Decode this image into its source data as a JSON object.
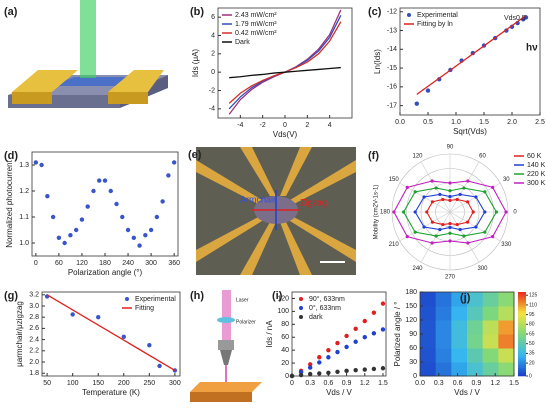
{
  "images": [
    {
      "label": "(a)"
    },
    {
      "label": "(e)",
      "texts": [
        "Armchair",
        "Zigzag"
      ]
    },
    {
      "label": "(h)",
      "texts": [
        "Laser",
        "Polarizer"
      ]
    }
  ],
  "chart_data": [
    {
      "type": "line",
      "label": "(b)",
      "xlabel": "Vds(V)",
      "ylabel": "Ids (μA)",
      "legend": "upper left",
      "xlim": [
        -6,
        6
      ],
      "ylim": [
        -5,
        7
      ],
      "xticks": [
        -4,
        -2,
        0,
        2,
        4
      ],
      "yticks": [
        -4,
        -2,
        0,
        2,
        4,
        6
      ],
      "x": [
        -5,
        -4,
        -3,
        -2,
        -1,
        0,
        1,
        2,
        3,
        4,
        5
      ],
      "series": [
        {
          "name": "2.43 mW/cm²",
          "color": "#a0307a",
          "style": "line",
          "values": [
            -4.6,
            -3.0,
            -1.9,
            -1.1,
            -0.5,
            0,
            0.6,
            1.4,
            2.5,
            4.1,
            6.8
          ]
        },
        {
          "name": "1.79 mW/cm²",
          "color": "#2f4fb8",
          "style": "line",
          "values": [
            -4.0,
            -2.7,
            -1.7,
            -1.0,
            -0.45,
            0,
            0.55,
            1.3,
            2.3,
            3.8,
            6.2
          ]
        },
        {
          "name": "0.42 mW/cm²",
          "color": "#d8302a",
          "style": "line",
          "values": [
            -3.4,
            -2.3,
            -1.5,
            -0.9,
            -0.4,
            0,
            0.5,
            1.1,
            2.0,
            3.4,
            5.5
          ]
        },
        {
          "name": "Dark",
          "color": "#111111",
          "style": "line",
          "values": [
            -0.6,
            -0.5,
            -0.35,
            -0.25,
            -0.1,
            0,
            0.1,
            0.2,
            0.3,
            0.4,
            0.5
          ]
        }
      ]
    },
    {
      "type": "line",
      "label": "(c)",
      "xlabel": "Sqrt(Vds)",
      "ylabel": "Ln(Ids)",
      "legend": "upper left",
      "annotations": [
        "Vds0.5",
        "hν"
      ],
      "xlim": [
        0,
        2.5
      ],
      "ylim": [
        -17.5,
        -11.8
      ],
      "xticks": [
        {
          "value": 0,
          "label": "0.0"
        },
        0.5,
        {
          "value": 1,
          "label": "1.0"
        },
        1.5,
        {
          "value": 2,
          "label": "2.0"
        },
        2.5
      ],
      "yticks": [
        -17,
        -16,
        -15,
        -14,
        -13,
        -12
      ],
      "series": [
        {
          "name": "Experimental",
          "color": "#3050c0",
          "style": "markers",
          "x": [
            0.3,
            0.5,
            0.7,
            0.9,
            1.1,
            1.3,
            1.5,
            1.7,
            1.9,
            2.0,
            2.1,
            2.2,
            2.25
          ],
          "values": [
            -16.9,
            -16.2,
            -15.6,
            -15.1,
            -14.6,
            -14.2,
            -13.8,
            -13.4,
            -13.0,
            -12.8,
            -12.6,
            -12.4,
            -12.3
          ]
        },
        {
          "name": "Fitting by ln",
          "color": "#e02020",
          "style": "line",
          "x": [
            0.3,
            2.25
          ],
          "values": [
            -16.4,
            -12.2
          ]
        }
      ]
    },
    {
      "type": "line",
      "label": "(d)",
      "xlabel": "Polarization angle (°)",
      "ylabel": "Normalized photocurrent",
      "xlim": [
        -10,
        370
      ],
      "ylim": [
        0.95,
        1.35
      ],
      "xticks": [
        0,
        60,
        120,
        180,
        240,
        300,
        360
      ],
      "yticks": [
        {
          "value": 1,
          "label": "1.0"
        },
        1.1,
        1.2,
        1.3
      ],
      "x": [
        0,
        15,
        30,
        45,
        60,
        75,
        90,
        105,
        120,
        135,
        150,
        165,
        180,
        195,
        210,
        225,
        240,
        255,
        270,
        285,
        300,
        315,
        330,
        345,
        360
      ],
      "series": [
        {
          "color": "#3a55c8",
          "style": "markers",
          "values": [
            1.31,
            1.3,
            1.18,
            1.1,
            1.02,
            1.0,
            1.03,
            1.05,
            1.09,
            1.14,
            1.2,
            1.24,
            1.24,
            1.2,
            1.15,
            1.1,
            1.05,
            1.02,
            0.99,
            1.03,
            1.05,
            1.1,
            1.16,
            1.26,
            1.31
          ]
        }
      ]
    },
    {
      "type": "polar",
      "label": "(f)",
      "ylabel": "Mobility (cm2V-1s-1)",
      "legend": "upper right",
      "rlim": [
        0,
        300
      ],
      "thetaticks": [
        0,
        30,
        60,
        90,
        120,
        150,
        180,
        210,
        240,
        270,
        300,
        330
      ],
      "theta": [
        0,
        30,
        60,
        90,
        120,
        150,
        180,
        210,
        240,
        270,
        300,
        330
      ],
      "series": [
        {
          "name": "60 K",
          "color": "#e02020",
          "values": [
            120,
            105,
            75,
            60,
            75,
            105,
            120,
            105,
            75,
            60,
            75,
            105
          ]
        },
        {
          "name": "140 K",
          "color": "#2040d0",
          "values": [
            180,
            155,
            105,
            80,
            105,
            155,
            180,
            155,
            105,
            80,
            105,
            155
          ]
        },
        {
          "name": "220 K",
          "color": "#20a030",
          "values": [
            240,
            208,
            143,
            110,
            143,
            208,
            240,
            208,
            143,
            110,
            143,
            208
          ]
        },
        {
          "name": "300 K",
          "color": "#c020c0",
          "values": [
            290,
            255,
            185,
            150,
            185,
            255,
            290,
            255,
            185,
            150,
            185,
            255
          ]
        }
      ]
    },
    {
      "type": "line",
      "label": "(g)",
      "xlabel": "Temperature (K)",
      "ylabel": "μarmchair/μzigzag",
      "legend": "upper right",
      "xlim": [
        40,
        310
      ],
      "ylim": [
        1.75,
        3.25
      ],
      "xticks": [
        50,
        100,
        150,
        200,
        250,
        300
      ],
      "yticks": [
        1.8,
        {
          "value": 2,
          "label": "2.0"
        },
        2.2,
        2.4,
        2.6,
        2.8,
        {
          "value": 3,
          "label": "3.0"
        },
        3.2
      ],
      "series": [
        {
          "name": "Experimental",
          "color": "#3a55c8",
          "style": "markers",
          "x": [
            50,
            100,
            150,
            200,
            250,
            270,
            300
          ],
          "values": [
            3.17,
            2.85,
            2.8,
            2.45,
            2.3,
            1.93,
            1.85
          ]
        },
        {
          "name": "Fitting",
          "color": "#e02020",
          "style": "line",
          "x": [
            50,
            300
          ],
          "values": [
            3.2,
            1.85
          ]
        }
      ]
    },
    {
      "type": "line",
      "label": "(i)",
      "xlabel": "Vds / V",
      "ylabel": "Ids / nA",
      "legend": "upper left",
      "xlim": [
        0,
        1.55
      ],
      "ylim": [
        0,
        130
      ],
      "xticks": [
        0,
        0.3,
        0.6,
        0.9,
        1.2,
        1.5
      ],
      "yticks": [
        0,
        20,
        40,
        60,
        80,
        100,
        120
      ],
      "x": [
        0,
        0.15,
        0.3,
        0.45,
        0.6,
        0.75,
        0.9,
        1.05,
        1.2,
        1.35,
        1.5
      ],
      "series": [
        {
          "name": "90°, 633nm",
          "color": "#e02020",
          "style": "markers",
          "values": [
            0,
            8,
            18,
            29,
            40,
            51,
            62,
            73,
            85,
            98,
            112
          ]
        },
        {
          "name": "0°, 633nm",
          "color": "#2040d0",
          "style": "markers",
          "values": [
            0,
            6,
            13,
            21,
            29,
            37,
            45,
            53,
            60,
            66,
            72
          ]
        },
        {
          "name": "dark",
          "color": "#333333",
          "style": "markers",
          "values": [
            0,
            1.5,
            3,
            4,
            5,
            6.5,
            8,
            9,
            10,
            11,
            12
          ]
        }
      ]
    },
    {
      "type": "heatmap",
      "label": "(j)",
      "xlabel": "Vds / V",
      "ylabel": "Polarized angle / °",
      "xlim": [
        0,
        1.5
      ],
      "ylim": [
        0,
        180
      ],
      "xticks": [
        {
          "value": 0,
          "label": "0.0"
        },
        0.3,
        0.6,
        0.9,
        1.2,
        1.5
      ],
      "yticks": [
        0,
        30,
        60,
        90,
        120,
        150,
        180
      ],
      "x": [
        0.125,
        0.375,
        0.625,
        0.875,
        1.125,
        1.375
      ],
      "y": [
        15,
        45,
        75,
        105,
        135,
        165
      ],
      "z": [
        [
          5,
          15,
          28,
          42,
          55,
          68
        ],
        [
          6,
          18,
          33,
          50,
          66,
          85
        ],
        [
          7,
          20,
          38,
          60,
          85,
          115
        ],
        [
          7,
          20,
          38,
          58,
          82,
          110
        ],
        [
          6,
          17,
          32,
          48,
          64,
          80
        ],
        [
          5,
          15,
          28,
          42,
          55,
          68
        ]
      ],
      "zlim": [
        0,
        130
      ],
      "cticks": [
        0,
        20,
        35,
        50,
        65,
        80,
        95,
        110,
        125
      ]
    }
  ]
}
